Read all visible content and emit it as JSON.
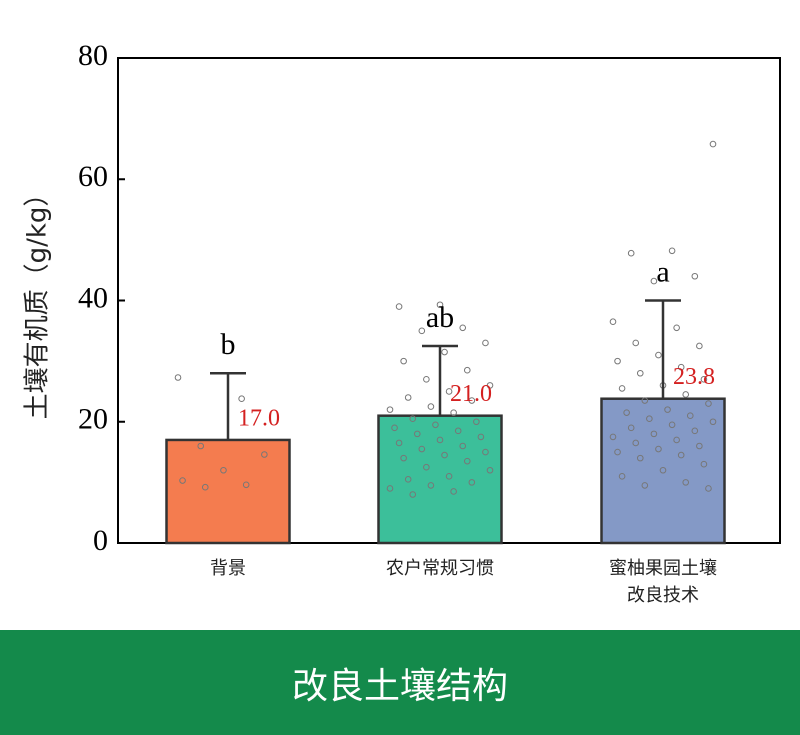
{
  "chart_data": {
    "type": "bar",
    "y_label": "土壤有机质（g/kg）",
    "categories": [
      "背景",
      "农户常规习惯",
      "蜜柚果园土壤改良技术"
    ],
    "values": [
      17.0,
      21.0,
      23.8
    ],
    "value_labels": [
      "17.0",
      "21.0",
      "23.8"
    ],
    "errors": [
      11.0,
      11.5,
      16.2
    ],
    "annotations": [
      "b",
      "ab",
      "a"
    ],
    "colors": [
      "#f47c4f",
      "#3cbf9a",
      "#8499c6"
    ],
    "points": [
      [
        27.3,
        23.8,
        16.0,
        14.6,
        12.0,
        10.3,
        9.6,
        9.2
      ],
      [
        39.3,
        39.0,
        35.5,
        35.0,
        33.0,
        31.5,
        30.0,
        28.5,
        27.0,
        26.0,
        25.0,
        24.0,
        23.5,
        22.5,
        22.0,
        21.5,
        20.5,
        20.0,
        19.5,
        19.0,
        18.5,
        18.0,
        17.5,
        17.0,
        16.5,
        16.0,
        15.5,
        15.0,
        14.5,
        14.0,
        13.5,
        12.5,
        12.0,
        11.0,
        10.5,
        10.0,
        9.5,
        9.0,
        8.5,
        8.0
      ],
      [
        65.8,
        48.2,
        47.8,
        44.0,
        43.2,
        36.5,
        35.5,
        33.0,
        32.5,
        31.0,
        30.0,
        29.0,
        28.0,
        27.0,
        26.0,
        25.5,
        24.5,
        23.5,
        23.0,
        22.0,
        21.5,
        21.0,
        20.5,
        20.0,
        19.5,
        19.0,
        18.5,
        18.0,
        17.5,
        17.0,
        16.5,
        16.0,
        15.5,
        15.0,
        14.5,
        14.0,
        13.0,
        12.0,
        11.0,
        10.0,
        9.5,
        9.0
      ]
    ],
    "ylim": [
      0,
      80
    ],
    "yticks": [
      0,
      20,
      40,
      60,
      80
    ]
  },
  "banner": {
    "title": "改良土壤结构"
  }
}
